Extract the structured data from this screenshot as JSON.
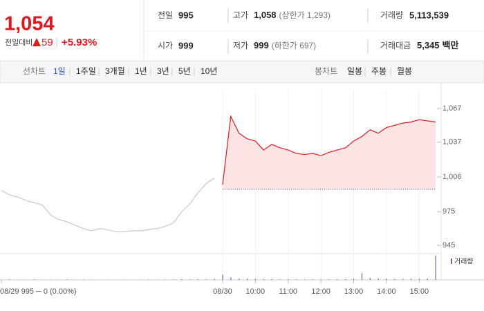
{
  "header": {
    "price": "1,054",
    "change_label": "전일대비",
    "change": "59",
    "rate": "+5.93%"
  },
  "stats": [
    {
      "label": "전일",
      "value": "995"
    },
    {
      "label": "고가",
      "value": "1,058",
      "note": "(상한가 1,293)"
    },
    {
      "label": "거래량",
      "value": "5,113,539"
    },
    {
      "label": "시가",
      "value": "999"
    },
    {
      "label": "저가",
      "value": "999",
      "note": "(하한가 697)"
    },
    {
      "label": "거래대금",
      "value": "5,345",
      "unit": "백만"
    }
  ],
  "tabs": {
    "line_label": "선차트",
    "line": [
      "1일",
      "1주일",
      "3개월",
      "1년",
      "3년",
      "5년",
      "10년"
    ],
    "candle_label": "봉차트",
    "candle": [
      "일봉",
      "주봉",
      "월봉"
    ]
  },
  "chart_data": {
    "type": "line",
    "categories": [
      "08/29 995 ─ 0 (0.00%)",
      null,
      null,
      null,
      null,
      null,
      null,
      null,
      null,
      null,
      null,
      null,
      null,
      null,
      null,
      null,
      null,
      null,
      null,
      null,
      null,
      null,
      null,
      null,
      null,
      null,
      null,
      "08/30",
      null,
      null,
      null,
      "10:00",
      null,
      null,
      null,
      "11:00",
      null,
      null,
      null,
      "12:00",
      null,
      null,
      null,
      "13:00",
      null,
      null,
      null,
      "14:00",
      null,
      null,
      null,
      "15:00",
      null,
      null
    ],
    "series": [
      {
        "name": "08/29",
        "color": "#c8c8c8",
        "values": [
          994,
          990,
          988,
          985,
          983,
          981,
          972,
          968,
          966,
          963,
          960,
          958,
          960,
          959,
          957,
          957,
          958,
          958,
          959,
          960,
          962,
          965,
          975,
          982,
          992,
          1000,
          1005,
          null,
          null,
          null,
          null,
          null,
          null,
          null,
          null,
          null,
          null,
          null,
          null,
          null,
          null,
          null,
          null,
          null,
          null,
          null,
          null,
          null,
          null,
          null,
          null,
          null,
          null,
          null
        ]
      },
      {
        "name": "08/30",
        "color": "#e0171e",
        "fill": "#fde4e4",
        "values": [
          null,
          null,
          null,
          null,
          null,
          null,
          null,
          null,
          null,
          null,
          null,
          null,
          null,
          null,
          null,
          null,
          null,
          null,
          null,
          null,
          null,
          null,
          null,
          null,
          null,
          null,
          null,
          999,
          1060,
          1045,
          1040,
          1038,
          1030,
          1035,
          1032,
          1030,
          1027,
          1026,
          1027,
          1025,
          1028,
          1030,
          1032,
          1038,
          1042,
          1048,
          1045,
          1050,
          1052,
          1054,
          1055,
          1057,
          1056,
          1055
        ]
      }
    ],
    "reference_line": 995,
    "ylim": [
      945,
      1067
    ],
    "yticks": [
      {
        "value": 1067,
        "label": "1,067"
      },
      {
        "value": 1037,
        "label": "1,037"
      },
      {
        "value": 1006,
        "label": "1,006"
      },
      975,
      945
    ],
    "volume": {
      "name": "거래량",
      "color": "#7b5ea7",
      "lim": [
        0,
        100
      ],
      "values": [
        1,
        2,
        1,
        1,
        2,
        1,
        1,
        1,
        2,
        1,
        1,
        1,
        1,
        1,
        1,
        1,
        1,
        1,
        1,
        1,
        1,
        2,
        3,
        2,
        3,
        2,
        4,
        22,
        10,
        6,
        5,
        4,
        3,
        3,
        2,
        3,
        2,
        2,
        2,
        2,
        2,
        3,
        3,
        5,
        28,
        8,
        6,
        5,
        4,
        4,
        5,
        4,
        6,
        100
      ]
    }
  }
}
